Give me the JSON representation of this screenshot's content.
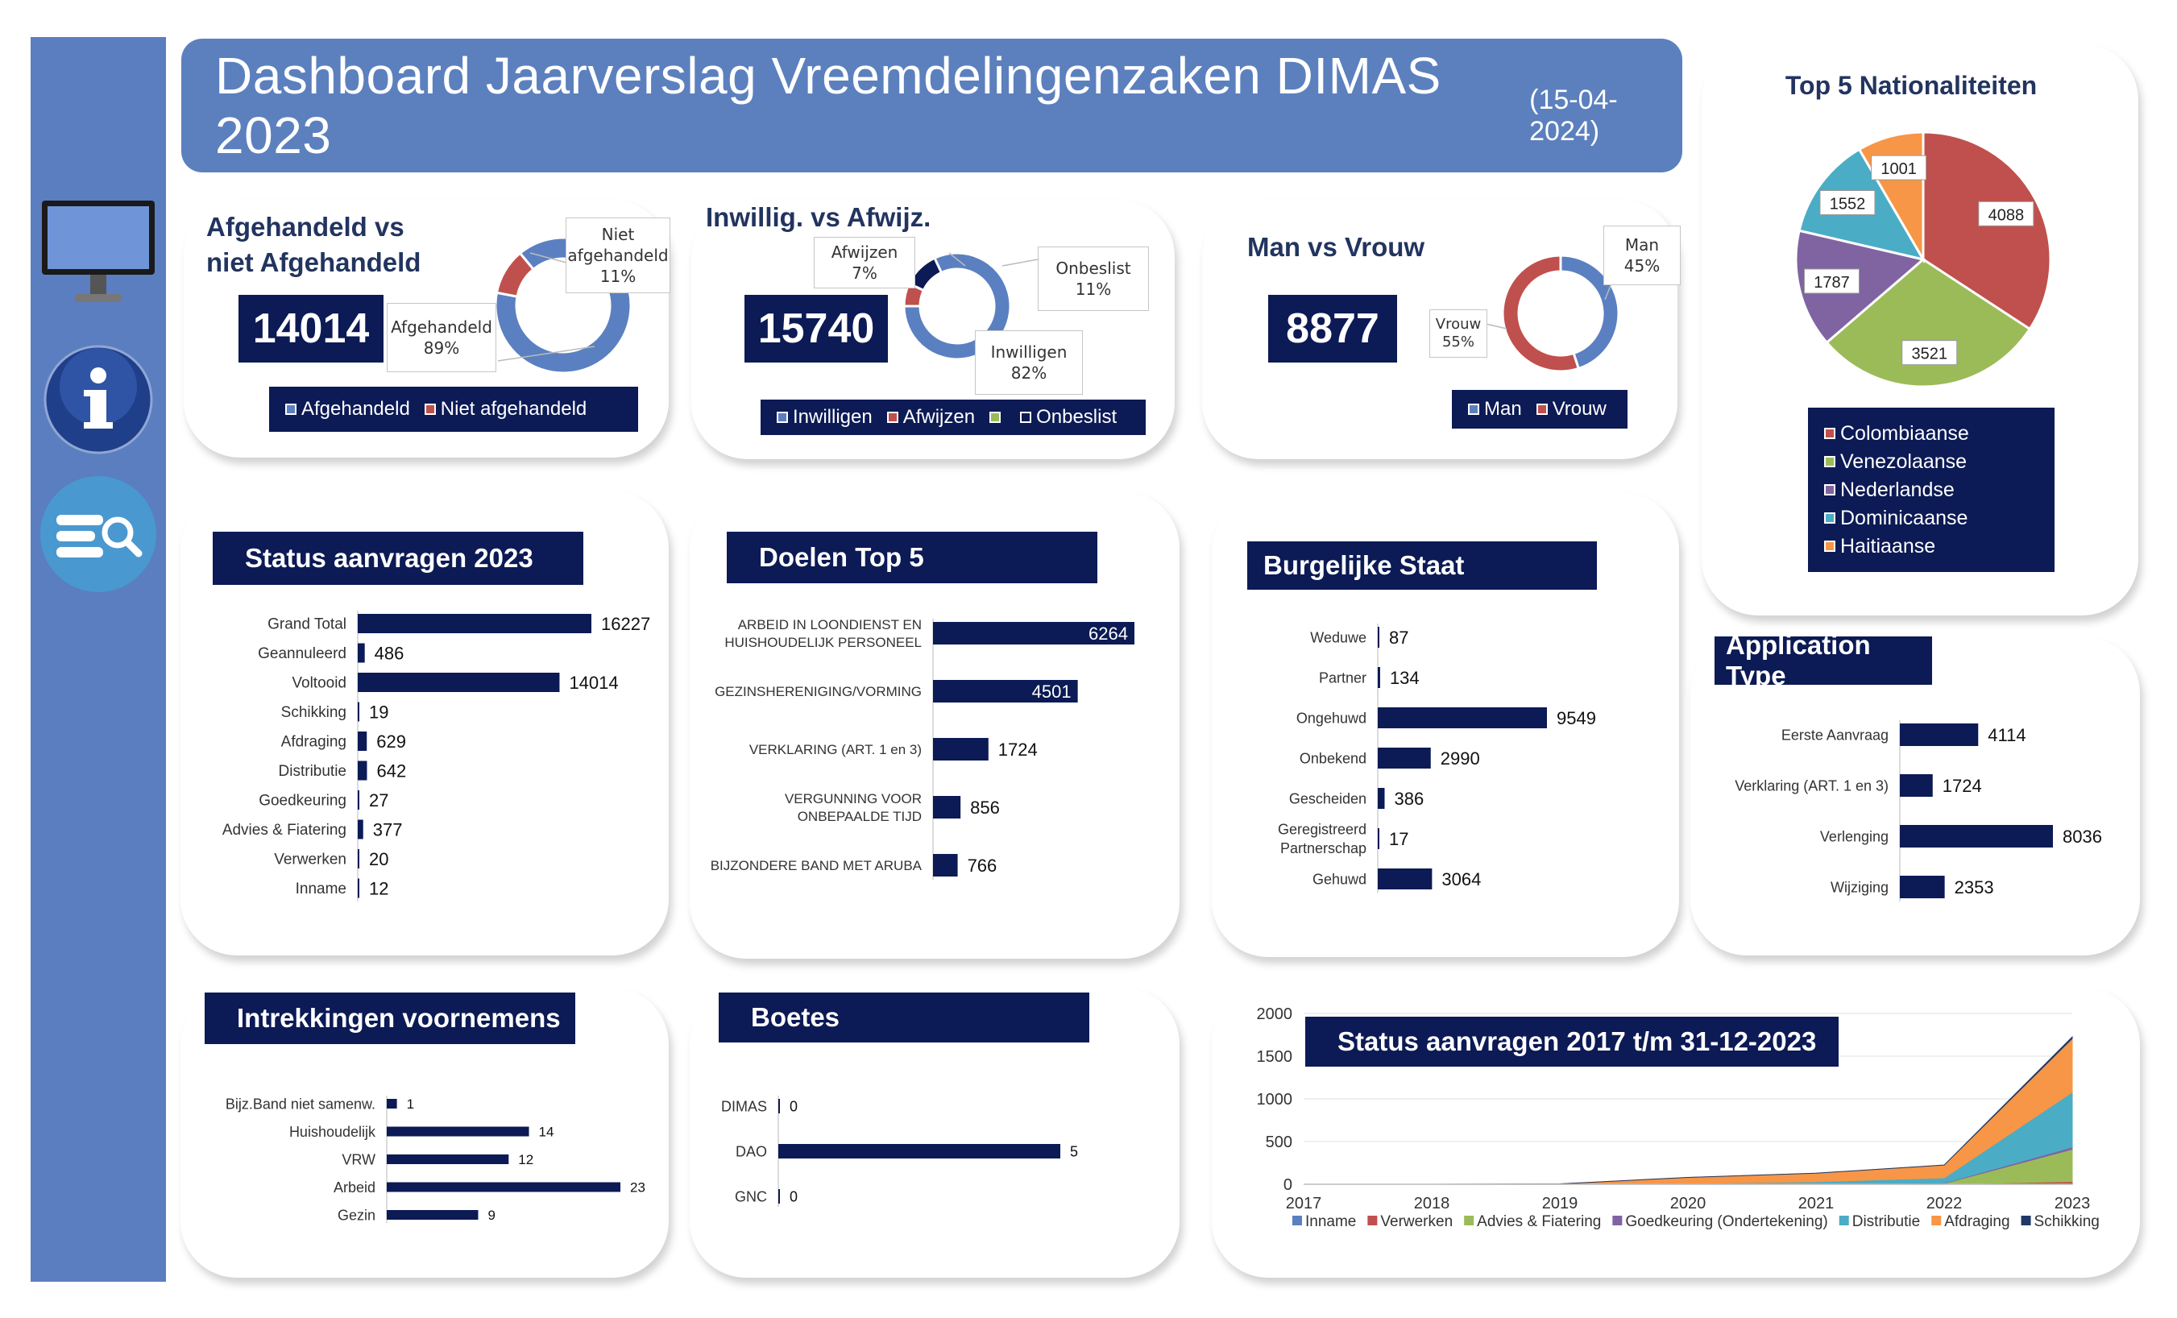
{
  "header": {
    "title": "Dashboard Jaarverslag Vreemdelingenzaken DIMAS 2023",
    "date": "(15-04-2024)"
  },
  "colors": {
    "navy": "#0c1a55",
    "blue": "#5b80c1",
    "red": "#c0504d",
    "green": "#9bbb59",
    "purple": "#8064a2",
    "teal": "#4bacc6",
    "orange": "#f79646"
  },
  "sidebar": {
    "icons": [
      "monitor-icon",
      "info-icon",
      "search-list-icon"
    ]
  },
  "afgehandeld": {
    "title_line1": "Afgehandeld  vs",
    "title_line2": "niet Afgehandeld",
    "total": "14014",
    "callout_a_line1": "Afgehandeld",
    "callout_a_line2": "89%",
    "callout_b_line1": "Niet",
    "callout_b_line2": "afgehandeld",
    "callout_b_line3": "11%",
    "legend": [
      "Afgehandeld",
      "Niet afgehandeld"
    ]
  },
  "inwillig": {
    "title": "Inwillig. vs Afwijz.",
    "total": "15740",
    "callout_afw_line1": "Afwijzen",
    "callout_afw_line2": "7%",
    "callout_onb_line1": "Onbeslist",
    "callout_onb_line2": "11%",
    "callout_inw_line1": "Inwilligen",
    "callout_inw_line2": "82%",
    "legend": [
      "Inwilligen",
      "Afwijzen",
      "Onbeslist"
    ]
  },
  "manvrouw": {
    "title": "Man vs Vrouw",
    "total": "8877",
    "callout_man_line1": "Man",
    "callout_man_line2": "45%",
    "callout_vrouw_line1": "Vrouw",
    "callout_vrouw_line2": "55%",
    "legend": [
      "Man",
      "Vrouw"
    ]
  },
  "nationaliteiten": {
    "legend": [
      "Colombiaanse",
      "Venezolaanse",
      "Nederlandse",
      "Dominicaanse",
      "Haitiaanse"
    ]
  },
  "chart_data": [
    {
      "id": "afgehandeld",
      "type": "pie",
      "donut": true,
      "categories": [
        "Afgehandeld",
        "Niet afgehandeld"
      ],
      "values": [
        89,
        11
      ],
      "unit": "%"
    },
    {
      "id": "inwillig",
      "type": "pie",
      "donut": true,
      "categories": [
        "Inwilligen",
        "Afwijzen",
        "Onbeslist"
      ],
      "values": [
        82,
        7,
        11
      ],
      "unit": "%"
    },
    {
      "id": "manvrouw",
      "type": "pie",
      "donut": true,
      "categories": [
        "Man",
        "Vrouw"
      ],
      "values": [
        45,
        55
      ],
      "unit": "%"
    },
    {
      "id": "nationaliteiten",
      "type": "pie",
      "title": "Top 5 Nationaliteiten",
      "categories": [
        "Colombiaanse",
        "Venezolaanse",
        "Nederlandse",
        "Dominicaanse",
        "Haitiaanse"
      ],
      "values": [
        4088,
        3521,
        1787,
        1552,
        1001
      ]
    },
    {
      "id": "status2023",
      "type": "bar",
      "orientation": "horizontal",
      "title": "Status aanvragen 2023",
      "categories": [
        "Grand Total",
        "Geannuleerd",
        "Voltooid",
        "Schikking",
        "Afdraging",
        "Distributie",
        "Goedkeuring",
        "Advies & Fiatering",
        "Verwerken",
        "Inname"
      ],
      "values": [
        16227,
        486,
        14014,
        19,
        629,
        642,
        27,
        377,
        20,
        12
      ]
    },
    {
      "id": "doelen",
      "type": "bar",
      "orientation": "horizontal",
      "title": "Doelen Top 5",
      "categories": [
        [
          "ARBEID IN LOONDIENST EN",
          "HUISHOUDELIJK PERSONEEL"
        ],
        [
          "GEZINSHERENIGING/VORMING"
        ],
        [
          "VERKLARING (ART. 1 en 3)"
        ],
        [
          "VERGUNNING VOOR",
          "ONBEPAALDE TIJD"
        ],
        [
          "BIJZONDERE BAND MET ARUBA"
        ]
      ],
      "values": [
        6264,
        4501,
        1724,
        856,
        766
      ]
    },
    {
      "id": "burgelijk",
      "type": "bar",
      "orientation": "horizontal",
      "title": "Burgelijke Staat",
      "categories": [
        [
          "Weduwe"
        ],
        [
          "Partner"
        ],
        [
          "Ongehuwd"
        ],
        [
          "Onbekend"
        ],
        [
          "Gescheiden"
        ],
        [
          "Geregistreerd",
          "Partnerschap"
        ],
        [
          "Gehuwd"
        ]
      ],
      "values": [
        87,
        134,
        9549,
        2990,
        386,
        17,
        3064
      ]
    },
    {
      "id": "apptype",
      "type": "bar",
      "orientation": "horizontal",
      "title": "Application Type",
      "categories": [
        "Eerste Aanvraag",
        "Verklaring (ART. 1 en 3)",
        "Verlenging",
        "Wijziging"
      ],
      "values": [
        4114,
        1724,
        8036,
        2353
      ]
    },
    {
      "id": "intrekkingen",
      "type": "bar",
      "orientation": "horizontal",
      "title": "Intrekkingen voornemens",
      "categories": [
        "Bijz.Band niet samenw.",
        "Huishoudelijk",
        "VRW",
        "Arbeid",
        "Gezin"
      ],
      "values": [
        1,
        14,
        12,
        23,
        9
      ]
    },
    {
      "id": "boetes",
      "type": "bar",
      "orientation": "horizontal",
      "title": "Boetes",
      "categories": [
        "DIMAS",
        "DAO",
        "GNC"
      ],
      "values": [
        0,
        5,
        0
      ]
    },
    {
      "id": "status2017",
      "type": "area",
      "stacked": true,
      "title": "Status aanvragen 2017 t/m 31-12-2023",
      "x": [
        "2017",
        "2018",
        "2019",
        "2020",
        "2021",
        "2022",
        "2023"
      ],
      "ylim": [
        0,
        2000
      ],
      "yticks": [
        0,
        500,
        1000,
        1500,
        2000
      ],
      "series": [
        {
          "name": "Inname",
          "values": [
            0,
            0,
            0,
            0,
            0,
            0,
            12
          ]
        },
        {
          "name": "Verwerken",
          "values": [
            0,
            0,
            0,
            0,
            0,
            0,
            20
          ]
        },
        {
          "name": "Advies & Fiatering",
          "values": [
            0,
            0,
            0,
            0,
            0,
            10,
            377
          ]
        },
        {
          "name": "Goedkeuring (Ondertekening)",
          "values": [
            0,
            0,
            0,
            0,
            0,
            5,
            27
          ]
        },
        {
          "name": "Distributie",
          "values": [
            0,
            0,
            0,
            10,
            30,
            60,
            642
          ]
        },
        {
          "name": "Afdraging",
          "values": [
            0,
            0,
            5,
            70,
            100,
            150,
            629
          ]
        },
        {
          "name": "Schikking",
          "values": [
            0,
            0,
            0,
            0,
            0,
            0,
            19
          ]
        }
      ]
    }
  ]
}
